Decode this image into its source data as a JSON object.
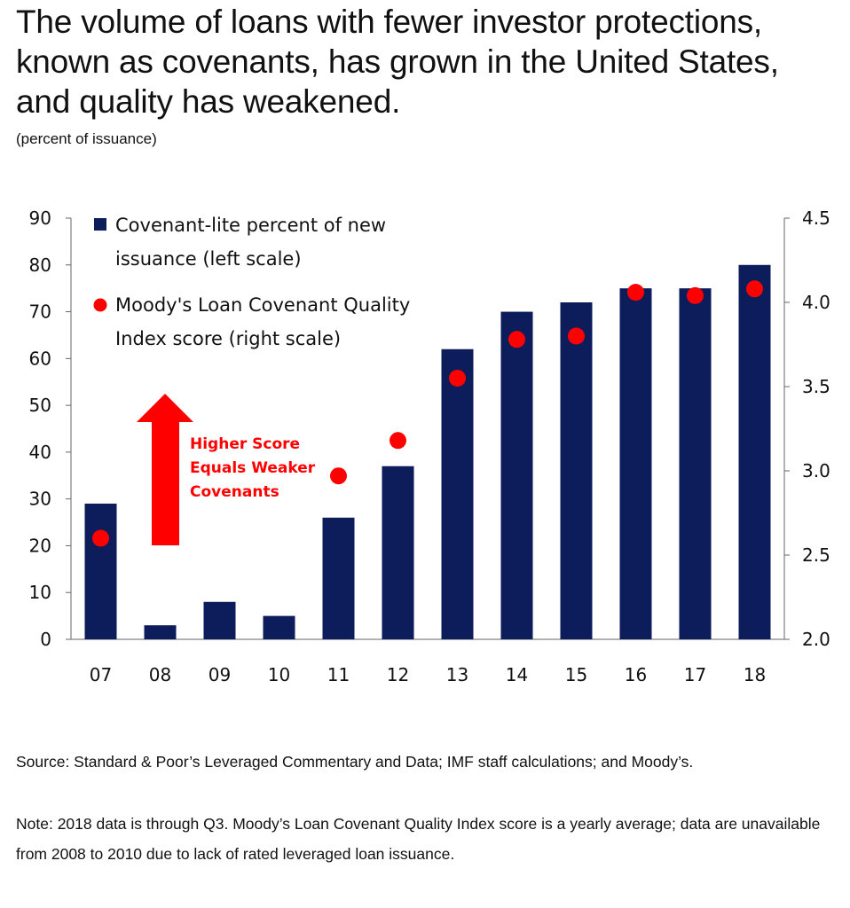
{
  "title": "The volume of loans with fewer investor protections, known as covenants, has grown in the United States, and quality has weakened.",
  "subtitle": "(percent of issuance)",
  "source": "Source: Standard & Poor’s Leveraged Commentary and Data; IMF staff calculations; and Moody’s.",
  "note": "Note: 2018 data is through Q3. Moody’s Loan Covenant Quality Index score is a yearly average; data are unavailable from 2008 to 2010 due to lack of rated leveraged loan issuance.",
  "annotation": {
    "text_lines": [
      "Higher Score",
      "Equals Weaker",
      "Covenants"
    ],
    "color": "#ff0000"
  },
  "colors": {
    "bar": "#0d1d5c",
    "dot": "#ff0000"
  },
  "chart_data": {
    "type": "bar",
    "categories": [
      "07",
      "08",
      "09",
      "10",
      "11",
      "12",
      "13",
      "14",
      "15",
      "16",
      "17",
      "18"
    ],
    "series": [
      {
        "name": "Covenant-lite percent of new issuance (left scale)",
        "type": "bar",
        "axis": "left",
        "values": [
          29,
          3,
          8,
          5,
          26,
          37,
          62,
          70,
          72,
          75,
          75,
          80
        ]
      },
      {
        "name": "Moody's Loan Covenant Quality Index score (right scale)",
        "type": "scatter",
        "axis": "right",
        "values": [
          2.6,
          null,
          null,
          null,
          2.97,
          3.18,
          3.55,
          3.78,
          3.8,
          4.06,
          4.04,
          4.08
        ]
      }
    ],
    "legend_labels": [
      [
        "Covenant-lite percent of new",
        "issuance (left scale)"
      ],
      [
        "Moody's Loan Covenant Quality",
        "Index score (right scale)"
      ]
    ],
    "legend_position": "top-left",
    "y_left": {
      "ylim": [
        0,
        90
      ],
      "ticks": [
        "0",
        "10",
        "20",
        "30",
        "40",
        "50",
        "60",
        "70",
        "80",
        "90"
      ]
    },
    "y_right": {
      "ylim": [
        2.0,
        4.5
      ],
      "ticks": [
        "2.0",
        "2.5",
        "3.0",
        "3.5",
        "4.0",
        "4.5"
      ]
    },
    "grid": false
  }
}
